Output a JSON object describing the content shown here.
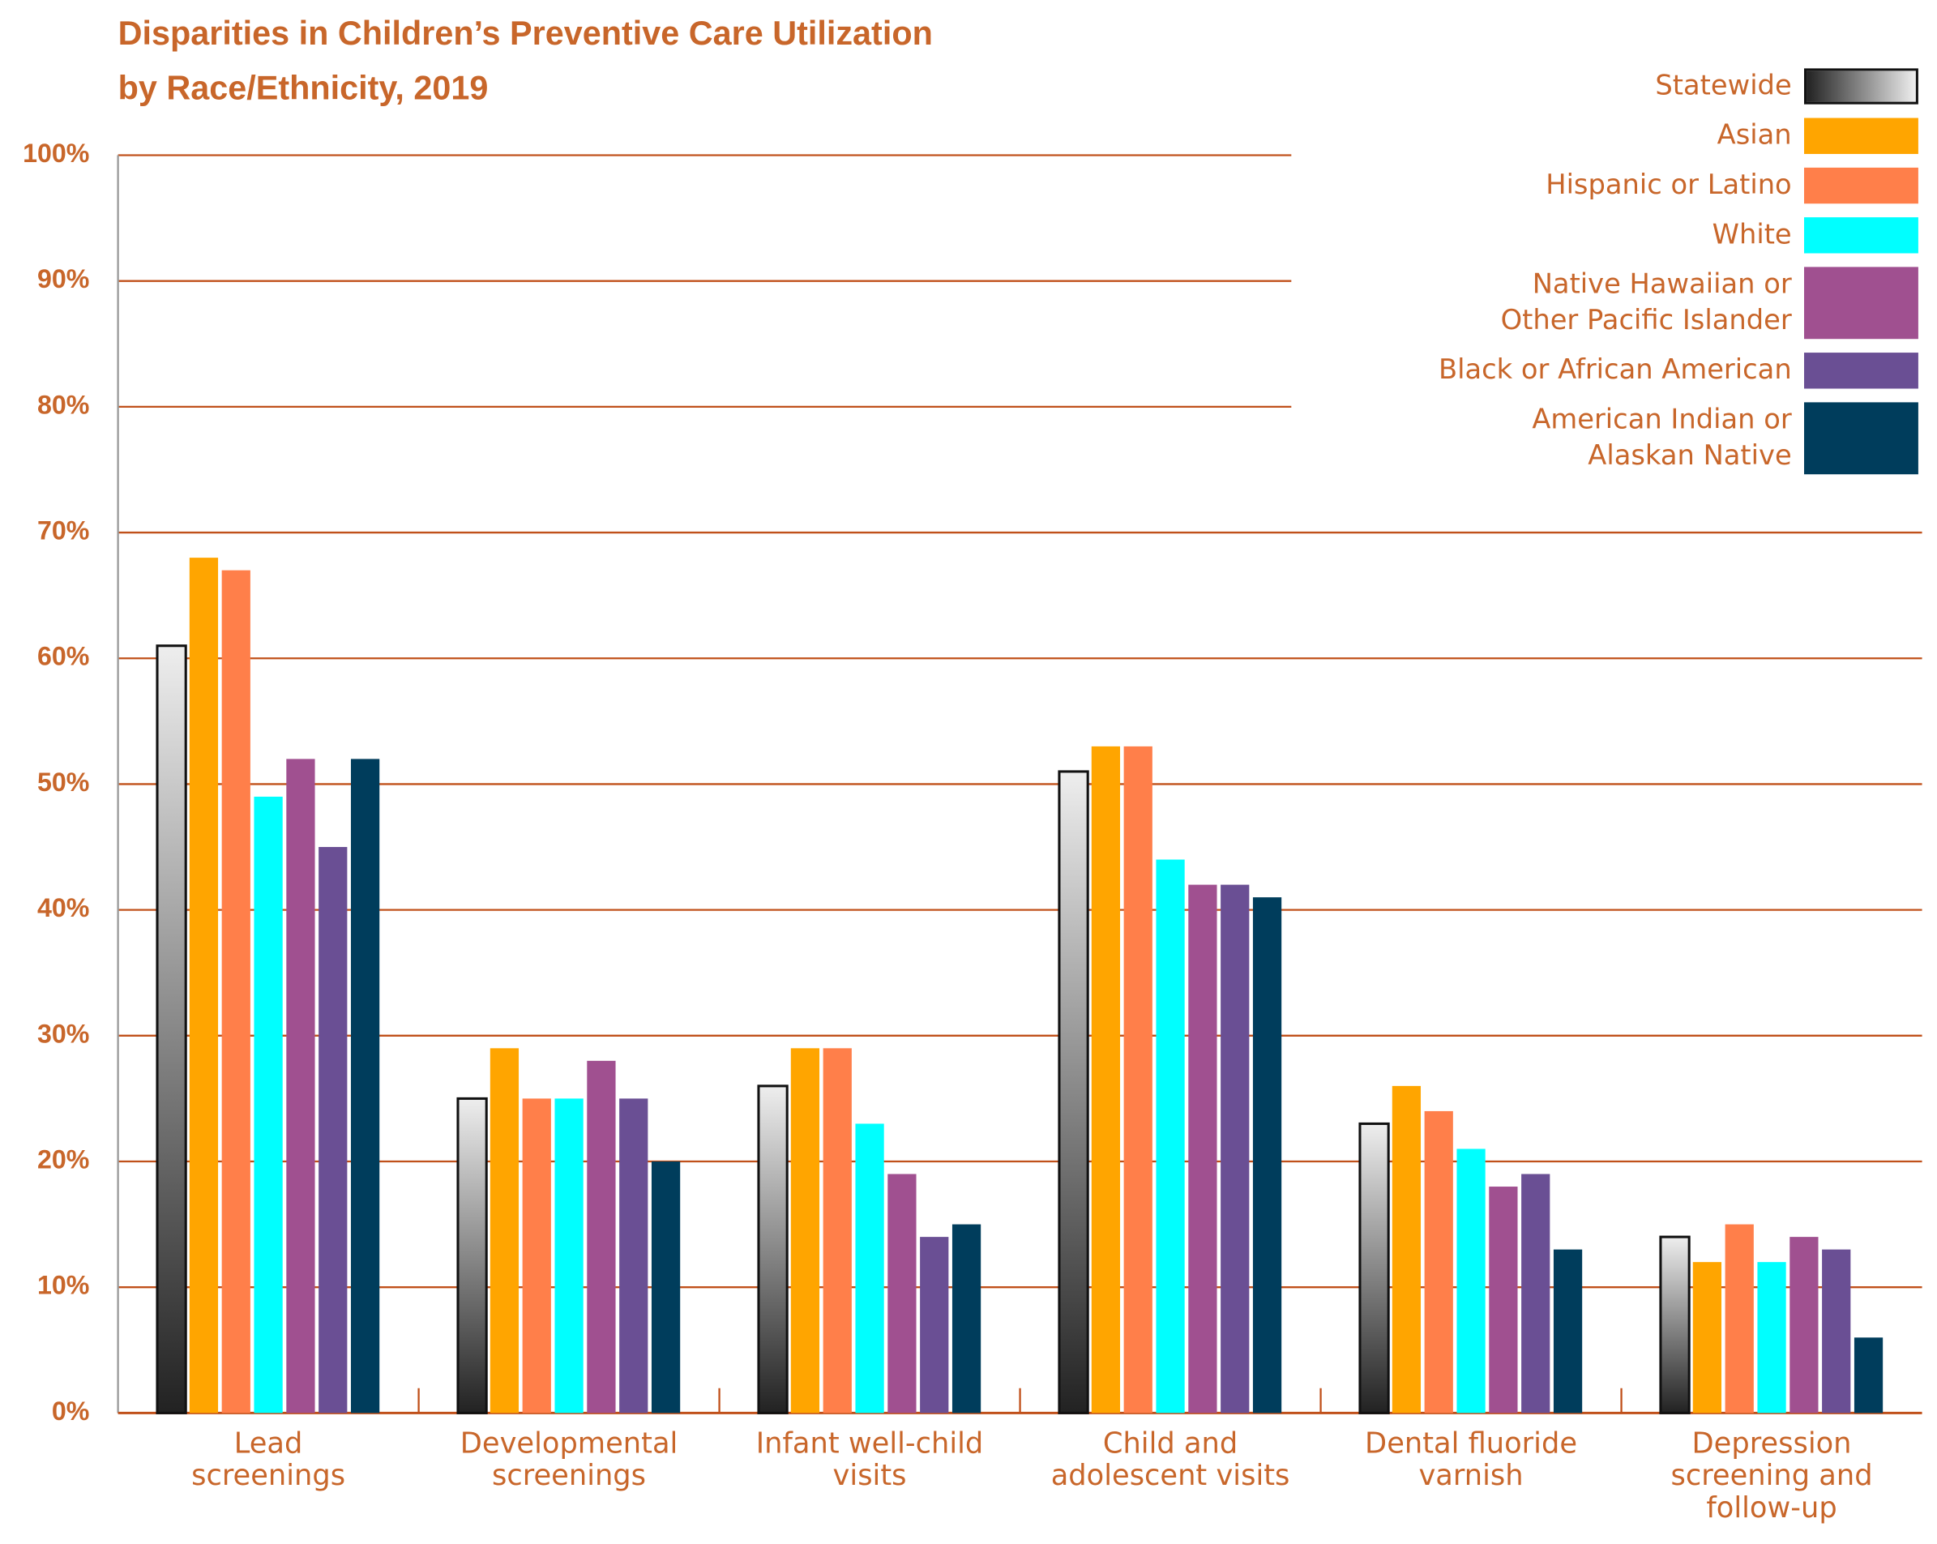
{
  "chart_data": {
    "type": "bar",
    "title": "Disparities in Children’s Preventive Care Utilization\nby Race/Ethnicity, 2019",
    "categories": [
      "Lead\nscreenings",
      "Developmental\nscreenings",
      "Infant well-child\nvisits",
      "Child and\nadolescent visits",
      "Dental fluoride\nvarnish",
      "Depression\nscreening and\nfollow-up"
    ],
    "series": [
      {
        "name": "Statewide",
        "color": "#888888",
        "gradient": [
          "#eeeeee",
          "#222222"
        ],
        "values": [
          61,
          25,
          26,
          51,
          23,
          14
        ]
      },
      {
        "name": "Asian",
        "color": "#ffa500",
        "values": [
          68,
          29,
          29,
          53,
          26,
          12
        ]
      },
      {
        "name": "Hispanic or Latino",
        "color": "#ff7f4a",
        "values": [
          67,
          25,
          29,
          53,
          24,
          15
        ]
      },
      {
        "name": "White",
        "color": "#00ffff",
        "values": [
          49,
          25,
          23,
          44,
          21,
          12
        ]
      },
      {
        "name": "Native Hawaiian or\nOther Pacific Islander",
        "color": "#a05090",
        "values": [
          52,
          28,
          19,
          42,
          18,
          14
        ]
      },
      {
        "name": "Black or African American",
        "color": "#6a4f94",
        "values": [
          45,
          25,
          14,
          42,
          19,
          13
        ]
      },
      {
        "name": "American Indian or\nAlaskan Native",
        "color": "#003d5c",
        "values": [
          52,
          20,
          15,
          41,
          13,
          6
        ]
      }
    ],
    "ylim": [
      0,
      100
    ],
    "yticks": [
      {
        "value": 0,
        "label": "0%"
      },
      {
        "value": 10,
        "label": "10%"
      },
      {
        "value": 20,
        "label": "20%"
      },
      {
        "value": 30,
        "label": "30%"
      },
      {
        "value": 40,
        "label": "40%"
      },
      {
        "value": 50,
        "label": "50%"
      },
      {
        "value": 60,
        "label": "60%"
      },
      {
        "value": 70,
        "label": "70%"
      },
      {
        "value": 80,
        "label": "80%"
      },
      {
        "value": 90,
        "label": "90%"
      },
      {
        "value": 100,
        "label": "100%"
      }
    ],
    "grid": true,
    "grid_color": "#c0501a",
    "legend": "top-right"
  }
}
